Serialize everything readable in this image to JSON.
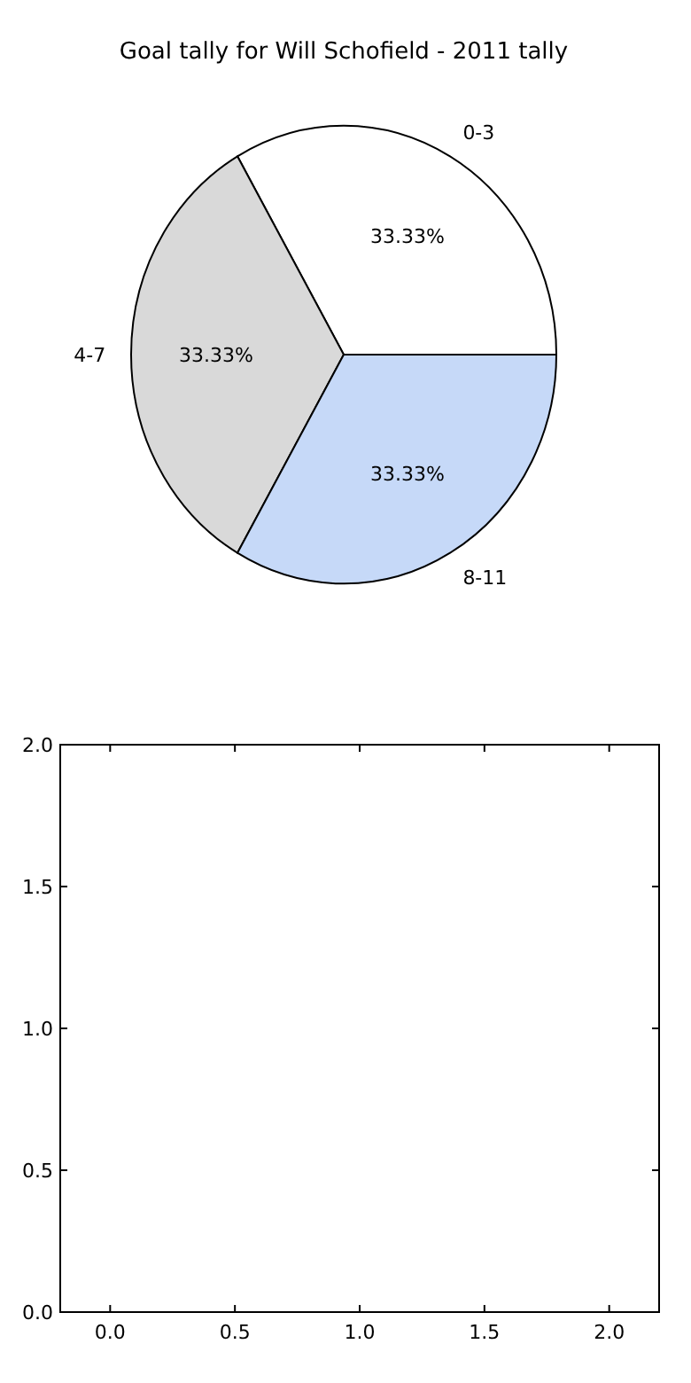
{
  "chart_data": [
    {
      "type": "pie",
      "title": "Goal tally for Will Schofield - 2011 tally",
      "categories": [
        "0-3",
        "4-7",
        "8-11"
      ],
      "values": [
        33.33,
        33.33,
        33.33
      ],
      "colors": [
        "#ffffff",
        "#d9d9d9",
        "#c6d9f8"
      ],
      "value_labels": [
        "33.33%",
        "33.33%",
        "33.33%"
      ]
    },
    {
      "type": "scatter",
      "xlim": [
        -0.2,
        2.2
      ],
      "ylim": [
        0,
        2
      ],
      "xticks": [
        {
          "value": 0,
          "label": "0.0"
        },
        {
          "value": 0.5,
          "label": "0.5"
        },
        {
          "value": 1,
          "label": "1.0"
        },
        {
          "value": 1.5,
          "label": "1.5"
        },
        {
          "value": 2,
          "label": "2.0"
        }
      ],
      "yticks": [
        {
          "value": 0,
          "label": "0.0"
        },
        {
          "value": 0.5,
          "label": "0.5"
        },
        {
          "value": 1,
          "label": "1.0"
        },
        {
          "value": 1.5,
          "label": "1.5"
        },
        {
          "value": 2,
          "label": "2.0"
        }
      ]
    }
  ]
}
